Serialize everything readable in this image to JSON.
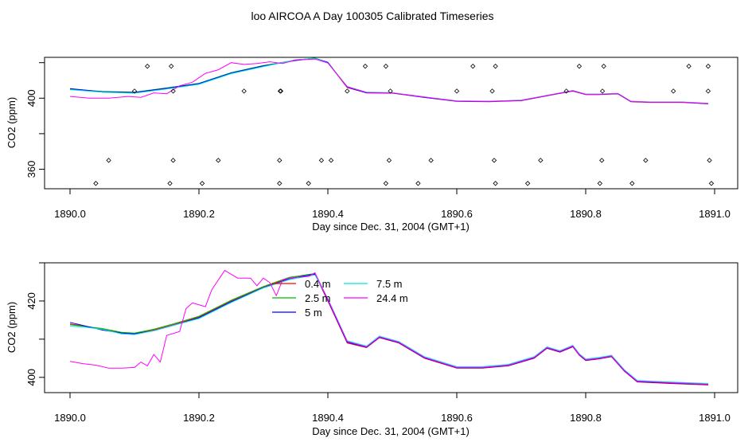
{
  "title": "loo AIRCOA A  Day 100305  Calibrated Timeseries",
  "colors": {
    "0.4 m": "#ff0000",
    "2.5 m": "#00bb00",
    "5 m": "#0000ff",
    "7.5 m": "#00e5e5",
    "24.4 m": "#ff00ff"
  },
  "chart_data": [
    {
      "type": "line",
      "xlabel": "Day since Dec. 31, 2004 (GMT+1)",
      "ylabel": "CO2 (ppm)",
      "xlim": [
        1890.0,
        1891.0
      ],
      "ylim": [
        349,
        423
      ],
      "x_ticks": [
        "1890.0",
        "1890.2",
        "1890.4",
        "1890.6",
        "1890.8",
        "1891.0"
      ],
      "y_ticks": [
        "360",
        "400"
      ],
      "y_tick_values": [
        360,
        380,
        400,
        420
      ],
      "series": [
        {
          "name": "0.4 m",
          "x": [
            1890.0,
            1890.05,
            1890.1,
            1890.15,
            1890.2,
            1890.25,
            1890.3,
            1890.35,
            1890.38,
            1890.4,
            1890.43,
            1890.46,
            1890.5,
            1890.55,
            1890.6,
            1890.65,
            1890.7,
            1890.75,
            1890.78,
            1890.8,
            1890.82,
            1890.85,
            1890.87,
            1890.9,
            1890.95,
            1890.99
          ],
          "values": [
            405,
            403.5,
            403,
            405.5,
            408,
            414,
            418,
            421.5,
            422.5,
            420,
            406,
            403,
            402.8,
            400.5,
            398.2,
            398,
            398.6,
            402,
            404,
            402,
            402,
            402.4,
            398,
            397.6,
            397.6,
            396.8
          ]
        },
        {
          "name": "2.5 m",
          "x": [
            1890.0,
            1890.05,
            1890.1,
            1890.15,
            1890.2,
            1890.25,
            1890.3,
            1890.35,
            1890.38,
            1890.4,
            1890.43,
            1890.46,
            1890.5,
            1890.55,
            1890.6,
            1890.65,
            1890.7,
            1890.75,
            1890.78,
            1890.8,
            1890.82,
            1890.85,
            1890.87,
            1890.9,
            1890.95,
            1890.99
          ],
          "values": [
            405.2,
            403.8,
            403.4,
            405.8,
            408.4,
            414.4,
            418.4,
            421.4,
            422.6,
            420,
            406.4,
            403.2,
            403,
            400.6,
            398.4,
            398.2,
            398.8,
            402.2,
            404.2,
            402.2,
            402.2,
            402.6,
            398.2,
            397.8,
            397.8,
            397
          ]
        },
        {
          "name": "5 m",
          "x": [
            1890.0,
            1890.05,
            1890.1,
            1890.15,
            1890.2,
            1890.25,
            1890.3,
            1890.35,
            1890.38,
            1890.4,
            1890.43,
            1890.46,
            1890.5,
            1890.55,
            1890.6,
            1890.65,
            1890.7,
            1890.75,
            1890.78,
            1890.8,
            1890.82,
            1890.85,
            1890.87,
            1890.9,
            1890.95,
            1890.99
          ],
          "values": [
            405.4,
            403.6,
            403.2,
            405.6,
            408.2,
            414.2,
            418.2,
            421.2,
            422.4,
            420.2,
            406.2,
            403,
            402.9,
            400.4,
            398.3,
            398.1,
            398.7,
            402.1,
            404.1,
            402.1,
            402.1,
            402.5,
            398.1,
            397.7,
            397.7,
            396.9
          ]
        },
        {
          "name": "7.5 m",
          "x": [
            1890.0,
            1890.05,
            1890.1,
            1890.15,
            1890.2,
            1890.25,
            1890.3,
            1890.35,
            1890.38,
            1890.4,
            1890.43,
            1890.46,
            1890.5,
            1890.55,
            1890.6,
            1890.65,
            1890.7,
            1890.75,
            1890.78,
            1890.8,
            1890.82,
            1890.85,
            1890.87,
            1890.9,
            1890.95,
            1890.99
          ],
          "values": [
            404.8,
            403.4,
            402.8,
            405.2,
            407.8,
            413.8,
            417.8,
            421.6,
            422.4,
            419.8,
            406.6,
            403.4,
            403.1,
            400.7,
            398.5,
            398.3,
            398.9,
            402.3,
            404.3,
            402.3,
            402.3,
            402.7,
            398.3,
            397.9,
            397.9,
            397.1
          ]
        },
        {
          "name": "24.4 m",
          "x": [
            1890.0,
            1890.03,
            1890.06,
            1890.09,
            1890.11,
            1890.13,
            1890.15,
            1890.17,
            1890.19,
            1890.21,
            1890.23,
            1890.25,
            1890.27,
            1890.29,
            1890.31,
            1890.33,
            1890.35,
            1890.38,
            1890.4,
            1890.43,
            1890.46,
            1890.5,
            1890.55,
            1890.6,
            1890.65,
            1890.7,
            1890.75,
            1890.78,
            1890.8,
            1890.82,
            1890.85,
            1890.87,
            1890.9,
            1890.95,
            1890.99
          ],
          "values": [
            401,
            400,
            400,
            401,
            400.5,
            403,
            402.5,
            407,
            409,
            414,
            416,
            420,
            419,
            419.5,
            420.5,
            419.5,
            421.5,
            422,
            419.8,
            406.4,
            403.2,
            403,
            400.6,
            398.4,
            398.2,
            398.8,
            402.2,
            404.2,
            402.2,
            402.2,
            402.6,
            398.2,
            397.8,
            397.8,
            397
          ]
        }
      ],
      "points": {
        "x": [
          1890.04,
          1890.06,
          1890.1,
          1890.12,
          1890.155,
          1890.157,
          1890.16,
          1890.16,
          1890.205,
          1890.23,
          1890.27,
          1890.325,
          1890.325,
          1890.326,
          1890.327,
          1890.37,
          1890.39,
          1890.405,
          1890.43,
          1890.458,
          1890.49,
          1890.495,
          1890.497,
          1890.49,
          1890.54,
          1890.56,
          1890.6,
          1890.625,
          1890.655,
          1890.658,
          1890.66,
          1890.66,
          1890.71,
          1890.73,
          1890.77,
          1890.79,
          1890.822,
          1890.825,
          1890.826,
          1890.828,
          1890.872,
          1890.893,
          1890.936,
          1890.96,
          1890.99,
          1890.99,
          1890.992,
          1890.995
        ],
        "y": [
          352,
          365,
          404,
          418,
          352,
          418,
          404,
          365,
          352,
          365,
          404,
          352,
          365,
          404,
          404,
          352,
          365,
          365,
          404,
          418,
          352,
          365,
          404,
          418,
          352,
          365,
          404,
          418,
          404,
          365,
          418,
          352,
          352,
          365,
          404,
          418,
          352,
          365,
          404,
          418,
          352,
          365,
          404,
          418,
          418,
          404,
          365,
          352
        ]
      }
    },
    {
      "type": "line",
      "xlabel": "Day since Dec. 31, 2004 (GMT+1)",
      "ylabel": "CO2 (ppm)",
      "xlim": [
        1890.0,
        1891.0
      ],
      "ylim": [
        396,
        430
      ],
      "x_ticks": [
        "1890.0",
        "1890.2",
        "1890.4",
        "1890.6",
        "1890.8",
        "1891.0"
      ],
      "y_ticks": [
        "400",
        "420"
      ],
      "y_tick_values": [
        400,
        410,
        420,
        430
      ],
      "legend": [
        "0.4 m",
        "2.5 m",
        "5 m",
        "7.5 m",
        "24.4 m"
      ],
      "legend_position": "top-center",
      "series": [
        {
          "name": "0.4 m",
          "x": [
            1890.0,
            1890.02,
            1890.05,
            1890.08,
            1890.1,
            1890.13,
            1890.16,
            1890.2,
            1890.25,
            1890.3,
            1890.34,
            1890.38,
            1890.4,
            1890.43,
            1890.46,
            1890.48,
            1890.51,
            1890.55,
            1890.6,
            1890.64,
            1890.68,
            1890.72,
            1890.74,
            1890.76,
            1890.78,
            1890.79,
            1890.8,
            1890.82,
            1890.84,
            1890.86,
            1890.88,
            1890.93,
            1890.99
          ],
          "values": [
            414,
            413.5,
            412.6,
            411.7,
            411.5,
            412.4,
            413.8,
            415.8,
            420,
            423.7,
            426,
            427,
            420,
            409,
            407.8,
            410.4,
            409,
            405,
            402.4,
            402.4,
            403,
            405,
            407.6,
            406.6,
            408,
            405.8,
            404.4,
            404.8,
            405.4,
            401.6,
            398.8,
            398.4,
            398
          ]
        },
        {
          "name": "2.5 m",
          "x": [
            1890.0,
            1890.02,
            1890.05,
            1890.08,
            1890.1,
            1890.13,
            1890.16,
            1890.2,
            1890.25,
            1890.3,
            1890.34,
            1890.38,
            1890.4,
            1890.43,
            1890.46,
            1890.48,
            1890.51,
            1890.55,
            1890.6,
            1890.64,
            1890.68,
            1890.72,
            1890.74,
            1890.76,
            1890.78,
            1890.79,
            1890.8,
            1890.82,
            1890.84,
            1890.86,
            1890.88,
            1890.93,
            1890.99
          ],
          "values": [
            413.8,
            413.4,
            412.8,
            411.8,
            411.6,
            412.6,
            414,
            416,
            420.2,
            423.8,
            426.2,
            427.2,
            420.4,
            409.4,
            408,
            410.6,
            409.2,
            405.2,
            402.6,
            402.6,
            403.2,
            405.2,
            407.8,
            406.8,
            408.2,
            406,
            404.6,
            405,
            405.6,
            401.8,
            399,
            398.6,
            398.2
          ]
        },
        {
          "name": "5 m",
          "x": [
            1890.0,
            1890.02,
            1890.05,
            1890.08,
            1890.1,
            1890.13,
            1890.16,
            1890.2,
            1890.25,
            1890.3,
            1890.34,
            1890.38,
            1890.4,
            1890.43,
            1890.46,
            1890.48,
            1890.51,
            1890.55,
            1890.6,
            1890.64,
            1890.68,
            1890.72,
            1890.74,
            1890.76,
            1890.78,
            1890.79,
            1890.8,
            1890.82,
            1890.84,
            1890.86,
            1890.88,
            1890.93,
            1890.99
          ],
          "values": [
            414.4,
            413.6,
            412.4,
            411.6,
            411.4,
            412.2,
            413.6,
            415.6,
            419.8,
            423.5,
            425.8,
            427.1,
            420.2,
            409.2,
            407.9,
            410.5,
            409.1,
            405.1,
            402.5,
            402.5,
            403.1,
            405.1,
            407.7,
            406.7,
            408.1,
            405.9,
            404.5,
            404.9,
            405.5,
            401.7,
            398.9,
            398.5,
            398.1
          ]
        },
        {
          "name": "7.5 m",
          "x": [
            1890.0,
            1890.02,
            1890.05,
            1890.08,
            1890.1,
            1890.13,
            1890.16,
            1890.2,
            1890.25,
            1890.3,
            1890.34,
            1890.38,
            1890.4,
            1890.43,
            1890.46,
            1890.48,
            1890.51,
            1890.55,
            1890.6,
            1890.64,
            1890.68,
            1890.72,
            1890.74,
            1890.76,
            1890.78,
            1890.79,
            1890.8,
            1890.82,
            1890.84,
            1890.86,
            1890.88,
            1890.93,
            1890.99
          ],
          "values": [
            413.4,
            413.2,
            412.6,
            411.4,
            411.2,
            412.2,
            413.6,
            415.4,
            419.6,
            423.4,
            425.6,
            426.8,
            420.6,
            409.6,
            408.2,
            410.8,
            409.4,
            405.4,
            402.8,
            402.8,
            403.4,
            405.4,
            408,
            407,
            408.4,
            406.2,
            404.8,
            405.2,
            405.8,
            402,
            399.2,
            398.8,
            398.4
          ]
        },
        {
          "name": "24.4 m",
          "x": [
            1890.0,
            1890.02,
            1890.04,
            1890.06,
            1890.08,
            1890.1,
            1890.11,
            1890.12,
            1890.13,
            1890.14,
            1890.15,
            1890.17,
            1890.18,
            1890.19,
            1890.21,
            1890.22,
            1890.24,
            1890.26,
            1890.28,
            1890.29,
            1890.3,
            1890.31,
            1890.32,
            1890.33,
            1890.35,
            1890.37,
            1890.38,
            1890.4,
            1890.43,
            1890.46,
            1890.48,
            1890.51,
            1890.55,
            1890.6,
            1890.64,
            1890.68,
            1890.72,
            1890.74,
            1890.76,
            1890.78,
            1890.79,
            1890.8,
            1890.82,
            1890.84,
            1890.86,
            1890.88,
            1890.93,
            1890.99
          ],
          "values": [
            404.2,
            403.6,
            403.2,
            402.4,
            402.4,
            402.6,
            404,
            403,
            406,
            404,
            411,
            412,
            418,
            419.5,
            418.5,
            423,
            428,
            426,
            426,
            424,
            426,
            424.8,
            421.4,
            425.6,
            426.2,
            426.4,
            427.4,
            420.4,
            409.4,
            408,
            410.6,
            409.2,
            405.2,
            402.6,
            402.6,
            403.2,
            405.2,
            407.8,
            406.8,
            408.2,
            406,
            404.6,
            405,
            405.6,
            401.8,
            399,
            398.6,
            398.2
          ]
        }
      ]
    }
  ]
}
